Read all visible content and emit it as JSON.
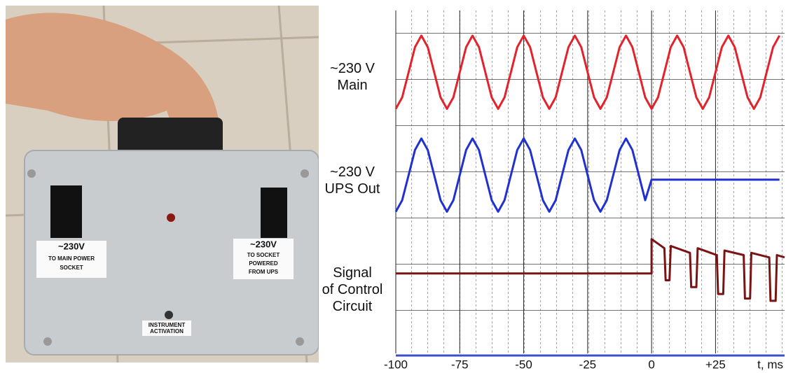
{
  "photo": {
    "labels": [
      "~230V",
      "TO MAIN POWER",
      "SOCKET",
      "~230V",
      "TO SOCKET",
      "POWERED",
      "FROM UPS",
      "INSTRUMENT",
      "ACTIVATION"
    ]
  },
  "chart_data": {
    "type": "line",
    "xlabel": "t, ms",
    "x": [
      -100,
      -97.5,
      -95,
      -92.5,
      -90,
      -87.5,
      -85,
      -82.5,
      -80,
      -77.5,
      -75,
      -72.5,
      -70,
      -67.5,
      -65,
      -62.5,
      -60,
      -57.5,
      -55,
      -52.5,
      -50,
      -47.5,
      -45,
      -42.5,
      -40,
      -37.5,
      -35,
      -32.5,
      -30,
      -27.5,
      -25,
      -22.5,
      -20,
      -17.5,
      -15,
      -12.5,
      -10,
      -7.5,
      -5,
      -2.5,
      0,
      2.5,
      5,
      7.5,
      10,
      12.5,
      15,
      17.5,
      20,
      22.5,
      25,
      27.5,
      30,
      32.5,
      35,
      37.5,
      40,
      42.5,
      45,
      47.5,
      50
    ],
    "xlim": [
      -100,
      52
    ],
    "ylim": [
      0,
      15
    ],
    "xticks": [
      -100,
      -75,
      -50,
      -25,
      0,
      {
        "value": 25,
        "label": "+25"
      }
    ],
    "grid": true,
    "series": [
      {
        "name": "~230 V\nMain",
        "color": "#e3232b",
        "values": [
          10.7,
          11.2,
          12.3,
          13.4,
          13.9,
          13.4,
          12.3,
          11.2,
          10.7,
          11.2,
          12.3,
          13.4,
          13.9,
          13.4,
          12.3,
          11.2,
          10.7,
          11.2,
          12.3,
          13.4,
          13.9,
          13.4,
          12.3,
          11.2,
          10.7,
          11.2,
          12.3,
          13.4,
          13.9,
          13.4,
          12.3,
          11.2,
          10.7,
          11.2,
          12.3,
          13.4,
          13.9,
          13.4,
          12.3,
          11.2,
          10.7,
          11.2,
          12.3,
          13.4,
          13.9,
          13.4,
          12.3,
          11.2,
          10.7,
          11.2,
          12.3,
          13.4,
          13.9,
          13.4,
          12.3,
          11.2,
          10.7,
          11.2,
          12.3,
          13.4,
          13.9
        ]
      },
      {
        "name": "~230 V\nUPS Out",
        "color": "#2130d0",
        "values": [
          6.2,
          6.7,
          7.8,
          8.9,
          9.4,
          8.9,
          7.8,
          6.7,
          6.2,
          6.7,
          7.8,
          8.9,
          9.4,
          8.9,
          7.8,
          6.7,
          6.2,
          6.7,
          7.8,
          8.9,
          9.4,
          8.9,
          7.8,
          6.7,
          6.2,
          6.7,
          7.8,
          8.9,
          9.4,
          8.9,
          7.8,
          6.7,
          6.2,
          6.7,
          7.8,
          8.9,
          9.4,
          8.9,
          7.8,
          6.7,
          7.6,
          7.6,
          7.6,
          7.6,
          7.6,
          7.6,
          7.6,
          7.6,
          7.6,
          7.6,
          7.6,
          7.6,
          7.6,
          7.6,
          7.6,
          7.6,
          7.6,
          7.6,
          7.6,
          7.6,
          7.6
        ]
      },
      {
        "name": "Signal\nof Control\nCircuit",
        "color": "#7a1414",
        "x": [
          -100,
          0,
          0,
          5,
          5.5,
          7,
          7.5,
          15,
          15.5,
          17.5,
          18,
          25.5,
          26,
          28,
          28.5,
          36,
          36.5,
          38.5,
          39,
          46,
          46.5,
          48.5,
          49,
          52
        ],
        "values": [
          3.5,
          3.5,
          5.0,
          4.6,
          3.2,
          3.2,
          4.7,
          4.4,
          2.9,
          2.9,
          4.6,
          4.3,
          2.6,
          2.6,
          4.5,
          4.3,
          2.4,
          2.4,
          4.4,
          4.2,
          2.3,
          2.3,
          4.3,
          4.2
        ]
      }
    ]
  }
}
